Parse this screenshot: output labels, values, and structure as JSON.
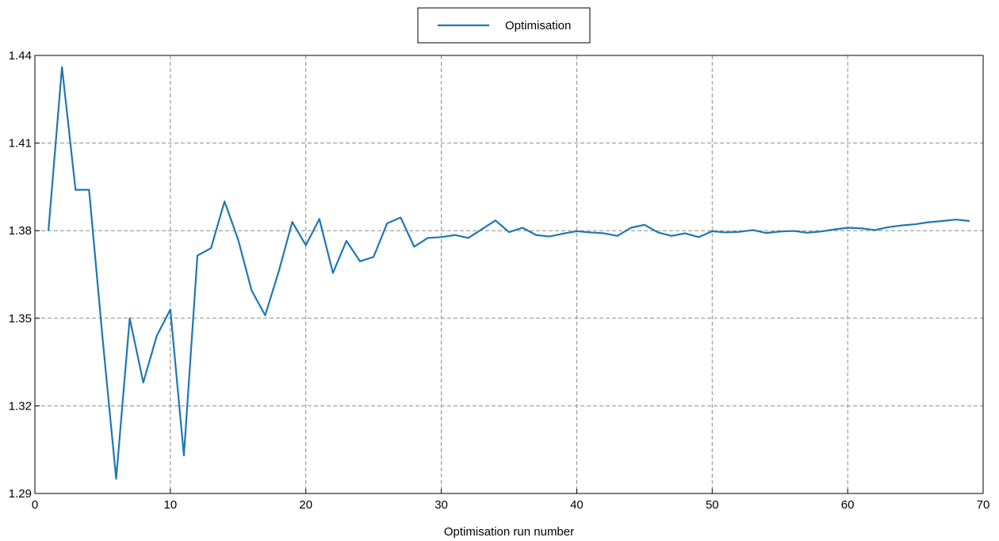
{
  "chart_data": {
    "type": "line",
    "title": "",
    "xlabel": "Optimisation run number",
    "ylabel": "",
    "xlim": [
      0,
      70
    ],
    "ylim": [
      1.29,
      1.44
    ],
    "xticks": [
      0,
      10,
      20,
      30,
      40,
      50,
      60,
      70
    ],
    "yticks": [
      1.29,
      1.32,
      1.35,
      1.38,
      1.41,
      1.44
    ],
    "xtick_labels": [
      "0",
      "10",
      "20",
      "30",
      "40",
      "50",
      "60",
      "70"
    ],
    "ytick_labels": [
      "1.29",
      "1.32",
      "1.35",
      "1.38",
      "1.41",
      "1.44"
    ],
    "grid": true,
    "legend_position": "top-center-outside",
    "series": [
      {
        "name": "Optimisation",
        "color": "#1f77b4",
        "x": [
          1,
          2,
          3,
          4,
          5,
          6,
          7,
          8,
          9,
          10,
          11,
          12,
          13,
          14,
          15,
          16,
          17,
          18,
          19,
          20,
          21,
          22,
          23,
          24,
          25,
          26,
          27,
          28,
          29,
          30,
          31,
          32,
          33,
          34,
          35,
          36,
          37,
          38,
          39,
          40,
          41,
          42,
          43,
          44,
          45,
          46,
          47,
          48,
          49,
          50,
          51,
          52,
          53,
          54,
          55,
          56,
          57,
          58,
          59,
          60,
          61,
          62,
          63,
          64,
          65,
          66,
          67,
          68,
          69
        ],
        "y": [
          1.38,
          1.436,
          1.394,
          1.394,
          1.343,
          1.295,
          1.35,
          1.328,
          1.344,
          1.353,
          1.303,
          1.3715,
          1.374,
          1.39,
          1.377,
          1.3595,
          1.351,
          1.366,
          1.383,
          1.375,
          1.384,
          1.3655,
          1.3765,
          1.3695,
          1.371,
          1.3825,
          1.3845,
          1.3745,
          1.3775,
          1.3778,
          1.3785,
          1.3775,
          1.3805,
          1.3835,
          1.3795,
          1.381,
          1.3785,
          1.378,
          1.379,
          1.3798,
          1.3794,
          1.3791,
          1.3782,
          1.381,
          1.382,
          1.3794,
          1.3782,
          1.3791,
          1.3778,
          1.3798,
          1.3794,
          1.3796,
          1.3802,
          1.3792,
          1.3797,
          1.3799,
          1.3793,
          1.3797,
          1.3804,
          1.381,
          1.3808,
          1.3802,
          1.3812,
          1.3818,
          1.3822,
          1.3829,
          1.3833,
          1.3838,
          1.3833
        ]
      }
    ]
  }
}
